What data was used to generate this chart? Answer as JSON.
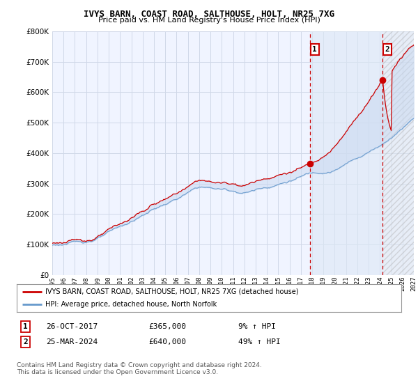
{
  "title": "IVYS BARN, COAST ROAD, SALTHOUSE, HOLT, NR25 7XG",
  "subtitle": "Price paid vs. HM Land Registry's House Price Index (HPI)",
  "background_color": "#ffffff",
  "plot_bg_color": "#f0f4ff",
  "grid_color": "#d0d8e8",
  "hpi_color": "#6699cc",
  "price_color": "#cc0000",
  "ylim": [
    0,
    800000
  ],
  "yticks": [
    0,
    100000,
    200000,
    300000,
    400000,
    500000,
    600000,
    700000,
    800000
  ],
  "sale1_x": 2017.82,
  "sale1_y": 365000,
  "sale2_x": 2024.23,
  "sale2_y": 640000,
  "legend_line1": "IVYS BARN, COAST ROAD, SALTHOUSE, HOLT, NR25 7XG (detached house)",
  "legend_line2": "HPI: Average price, detached house, North Norfolk",
  "table_row1": [
    "1",
    "26-OCT-2017",
    "£365,000",
    "9% ↑ HPI"
  ],
  "table_row2": [
    "2",
    "25-MAR-2024",
    "£640,000",
    "49% ↑ HPI"
  ],
  "footnote": "Contains HM Land Registry data © Crown copyright and database right 2024.\nThis data is licensed under the Open Government Licence v3.0.",
  "xmin": 1995,
  "xmax": 2027
}
